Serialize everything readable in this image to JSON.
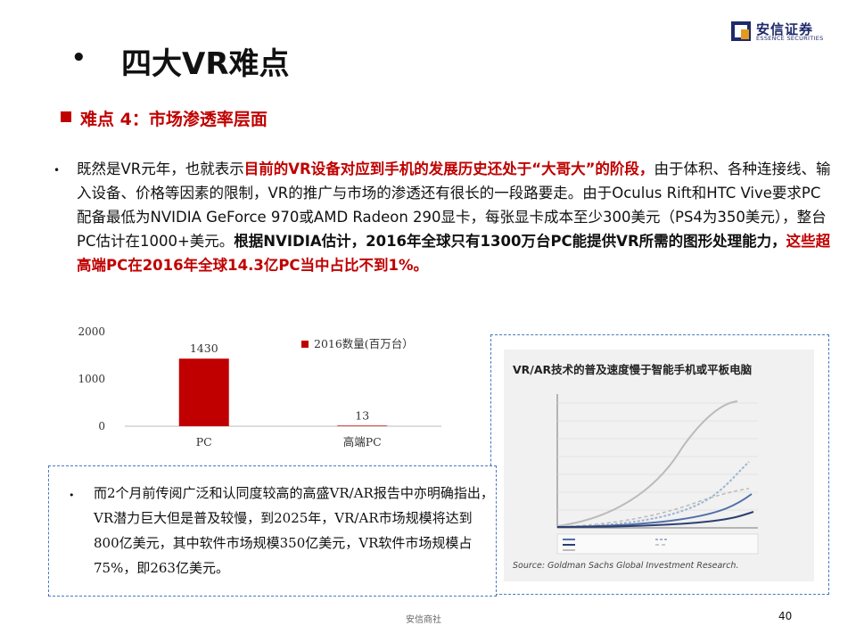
{
  "logo": {
    "cn": "安信证券",
    "en": "ESSENCE SECURITIES",
    "colors": {
      "primary": "#1f2a6b",
      "accent": "#e39a1e"
    }
  },
  "title": {
    "bullet": "•",
    "text": "四大VR难点"
  },
  "section": {
    "heading": "难点 4：市场渗透率层面"
  },
  "paragraph": {
    "bullet": "•",
    "s1": "既然是VR元年，也就表示",
    "s2": "目前的VR设备对应到手机的发展历史还处于“大哥大”的阶段，",
    "s3": "由于体积、各种连接线、输入设备、价格等因素的限制，VR的推广与市场的渗透还有很长的一段路要走。由于Oculus Rift和HTC Vive要求PC配备最低为NVIDIA GeForce 970或AMD Radeon 290显卡，每张显卡成本至少300美元（PS4为350美元），整台PC估计在1000+美元。",
    "s4": "根据NVIDIA估计，2016年全球只有1300万台PC能提供VR所需的图形处理能力，",
    "s5": "这些超高端PC在2016年全球14.3亿PC当中占比不到1%。"
  },
  "chart_data": {
    "type": "bar",
    "categories": [
      "PC",
      "高端PC"
    ],
    "series": [
      {
        "name": "2016数量(百万台）",
        "values": [
          1430,
          13
        ],
        "color": "#c00000"
      }
    ],
    "data_labels": [
      "1430",
      "13"
    ],
    "y_ticks": [
      "0",
      "1000",
      "2000"
    ],
    "ylim": [
      0,
      2000
    ],
    "legend_position": "top-right",
    "grid": false
  },
  "image_panel": {
    "title": "VR/AR技术的普及速度慢于智能手机或平板电脑",
    "source": "Source: Goldman Sachs Global Investment Research."
  },
  "text_box": {
    "bullet": "•",
    "text": "而2个月前传阅广泛和认同度较高的高盛VR/AR报告中亦明确指出，VR潜力巨大但是普及较慢，到2025年，VR/AR市场规模将达到800亿美元，其中软件市场规模350亿美元，VR软件市场规模占75%，即263亿美元。"
  },
  "footer": {
    "text": "安信商社",
    "page": "40"
  },
  "colors": {
    "accent_red": "#c00000",
    "border_blue": "#4a78c2"
  }
}
